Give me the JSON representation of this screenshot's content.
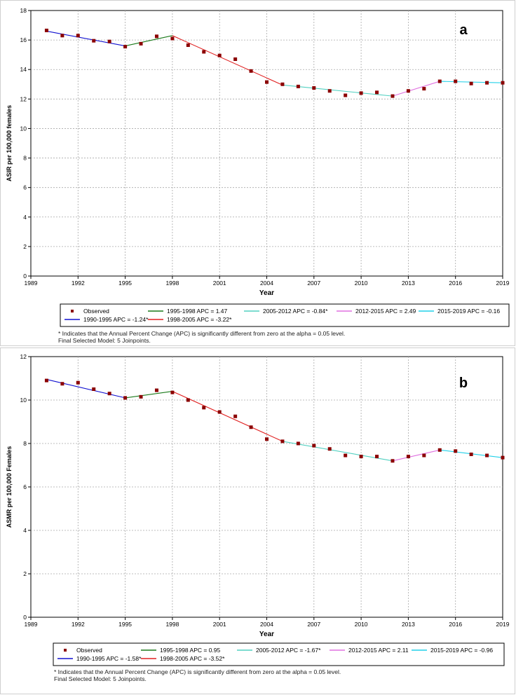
{
  "chart_data": [
    {
      "type": "line",
      "panel_label": "a",
      "xlabel": "Year",
      "ylabel": "ASIR per 100,000 females",
      "xlim": [
        1989,
        2019
      ],
      "ylim": [
        0,
        18
      ],
      "x_ticks": [
        "1989",
        "1992",
        "1995",
        "1998",
        "2001",
        "2004",
        "2007",
        "2010",
        "2013",
        "2016",
        "2019"
      ],
      "y_ticks": [
        "0",
        "2",
        "4",
        "6",
        "8",
        "10",
        "12",
        "14",
        "16",
        "18"
      ],
      "grid": true,
      "observed": {
        "name": "Observed",
        "color": "#8b0000",
        "x": [
          1990,
          1991,
          1992,
          1993,
          1994,
          1995,
          1996,
          1997,
          1998,
          1999,
          2000,
          2001,
          2002,
          2003,
          2004,
          2005,
          2006,
          2007,
          2008,
          2009,
          2010,
          2011,
          2012,
          2013,
          2014,
          2015,
          2016,
          2017,
          2018,
          2019
        ],
        "y": [
          16.65,
          16.3,
          16.3,
          15.95,
          15.9,
          15.55,
          15.75,
          16.25,
          16.1,
          15.65,
          15.2,
          14.95,
          14.7,
          13.9,
          13.15,
          13.0,
          12.85,
          12.75,
          12.55,
          12.25,
          12.4,
          12.45,
          12.2,
          12.55,
          12.7,
          13.2,
          13.2,
          13.05,
          13.1,
          13.1
        ]
      },
      "series": [
        {
          "name": "1990-1995 APC = -1.24*",
          "color": "#1010d0",
          "x": [
            1990,
            1995
          ],
          "y": [
            16.6,
            15.6
          ]
        },
        {
          "name": "1995-1998 APC = 1.47",
          "color": "#1a7a1a",
          "x": [
            1995,
            1998
          ],
          "y": [
            15.6,
            16.3
          ]
        },
        {
          "name": "1998-2005 APC = -3.22*",
          "color": "#e02020",
          "x": [
            1998,
            2005
          ],
          "y": [
            16.3,
            12.95
          ]
        },
        {
          "name": "2005-2012 APC = -0.84*",
          "color": "#50d0c0",
          "x": [
            2005,
            2012
          ],
          "y": [
            12.95,
            12.2
          ]
        },
        {
          "name": "2012-2015 APC = 2.49",
          "color": "#e070e0",
          "x": [
            2012,
            2015
          ],
          "y": [
            12.2,
            13.2
          ]
        },
        {
          "name": "2015-2019 APC = -0.16",
          "color": "#20d0e8",
          "x": [
            2015,
            2019
          ],
          "y": [
            13.2,
            13.1
          ]
        }
      ],
      "footnote_1": "* Indicates that the Annual Percent Change (APC) is significantly different from zero at the alpha = 0.05 level.",
      "footnote_2": "Final Selected Model: 5 Joinpoints."
    },
    {
      "type": "line",
      "panel_label": "b",
      "xlabel": "Year",
      "ylabel": "ASMR per 100,000 Females",
      "xlim": [
        1989,
        2019
      ],
      "ylim": [
        0,
        12
      ],
      "x_ticks": [
        "1989",
        "1992",
        "1995",
        "1998",
        "2001",
        "2004",
        "2007",
        "2010",
        "2013",
        "2016",
        "2019"
      ],
      "y_ticks": [
        "0",
        "2",
        "4",
        "6",
        "8",
        "10",
        "12"
      ],
      "grid": true,
      "observed": {
        "name": "Observed",
        "color": "#8b0000",
        "x": [
          1990,
          1991,
          1992,
          1993,
          1994,
          1995,
          1996,
          1997,
          1998,
          1999,
          2000,
          2001,
          2002,
          2003,
          2004,
          2005,
          2006,
          2007,
          2008,
          2009,
          2010,
          2011,
          2012,
          2013,
          2014,
          2015,
          2016,
          2017,
          2018,
          2019
        ],
        "y": [
          10.9,
          10.75,
          10.8,
          10.5,
          10.3,
          10.1,
          10.15,
          10.45,
          10.35,
          10.0,
          9.65,
          9.45,
          9.25,
          8.75,
          8.2,
          8.1,
          8.0,
          7.9,
          7.75,
          7.45,
          7.4,
          7.4,
          7.2,
          7.4,
          7.45,
          7.7,
          7.65,
          7.5,
          7.45,
          7.35
        ]
      },
      "series": [
        {
          "name": "1990-1995 APC = -1.58*",
          "color": "#1010d0",
          "x": [
            1990,
            1995
          ],
          "y": [
            10.95,
            10.1
          ]
        },
        {
          "name": "1995-1998 APC = 0.95",
          "color": "#1a7a1a",
          "x": [
            1995,
            1998
          ],
          "y": [
            10.1,
            10.4
          ]
        },
        {
          "name": "1998-2005 APC = -3.52*",
          "color": "#e02020",
          "x": [
            1998,
            2005
          ],
          "y": [
            10.4,
            8.1
          ]
        },
        {
          "name": "2005-2012 APC = -1.67*",
          "color": "#50d0c0",
          "x": [
            2005,
            2012
          ],
          "y": [
            8.1,
            7.2
          ]
        },
        {
          "name": "2012-2015 APC = 2.11",
          "color": "#e070e0",
          "x": [
            2012,
            2015
          ],
          "y": [
            7.2,
            7.7
          ]
        },
        {
          "name": "2015-2019 APC = -0.96",
          "color": "#20d0e8",
          "x": [
            2015,
            2019
          ],
          "y": [
            7.7,
            7.35
          ]
        }
      ],
      "footnote_1": "* Indicates that the Annual Percent Change (APC) is significantly different from zero at the alpha = 0.05 level.",
      "footnote_2": "Final Selected Model: 5 Joinpoints."
    }
  ]
}
